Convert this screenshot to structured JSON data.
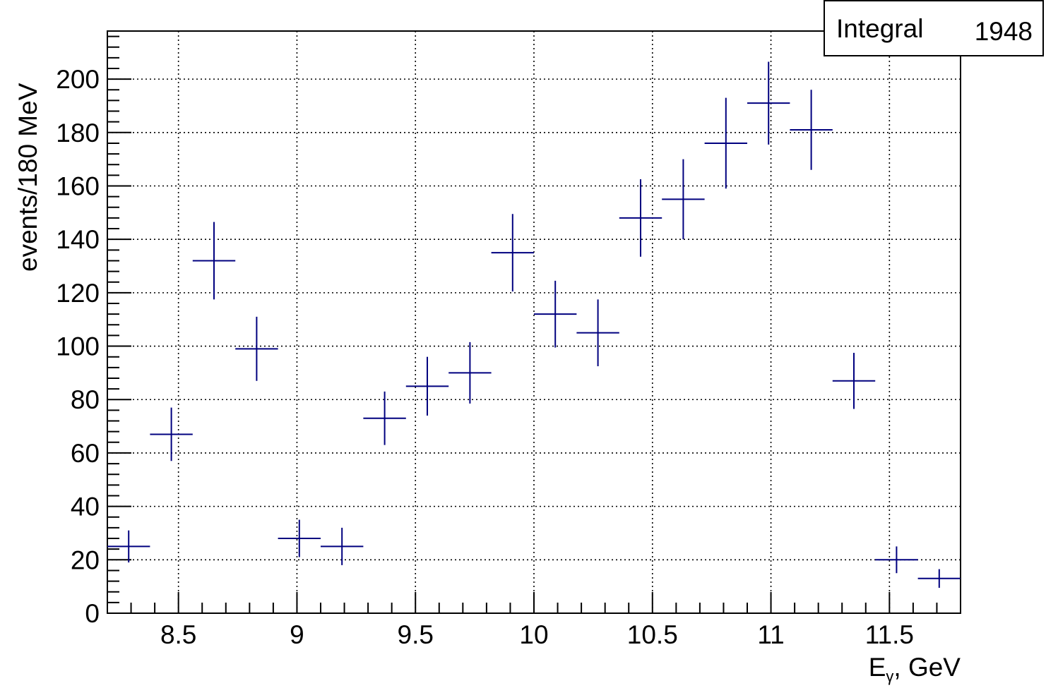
{
  "stats": {
    "label": "Integral",
    "value": "1948"
  },
  "chart_data": {
    "type": "scatter",
    "xlabel": "E",
    "xlabel_sub": "γ",
    "xlabel_tail": ", GeV",
    "ylabel": "events/180 MeV",
    "xlim": [
      8.2,
      11.8
    ],
    "ylim": [
      0,
      218
    ],
    "grid": true,
    "bin_width": 0.18,
    "x_ticks": [
      8.5,
      9,
      9.5,
      10,
      10.5,
      11,
      11.5
    ],
    "x_tick_labels": [
      "8.5",
      "9",
      "9.5",
      "10",
      "10.5",
      "11",
      "11.5"
    ],
    "y_ticks": [
      0,
      20,
      40,
      60,
      80,
      100,
      120,
      140,
      160,
      180,
      200
    ],
    "y_tick_labels": [
      "0",
      "20",
      "40",
      "60",
      "80",
      "100",
      "120",
      "140",
      "160",
      "180",
      "200"
    ],
    "color": "#00007f",
    "points": [
      {
        "x": 8.29,
        "y": 25,
        "err": 6
      },
      {
        "x": 8.47,
        "y": 67,
        "err": 10
      },
      {
        "x": 8.65,
        "y": 132,
        "err": 14.5
      },
      {
        "x": 8.83,
        "y": 99,
        "err": 12
      },
      {
        "x": 9.01,
        "y": 28,
        "err": 7
      },
      {
        "x": 9.19,
        "y": 25,
        "err": 7
      },
      {
        "x": 9.37,
        "y": 73,
        "err": 10
      },
      {
        "x": 9.55,
        "y": 85,
        "err": 11
      },
      {
        "x": 9.73,
        "y": 90,
        "err": 11.5
      },
      {
        "x": 9.91,
        "y": 135,
        "err": 14.5
      },
      {
        "x": 10.09,
        "y": 112,
        "err": 12.5
      },
      {
        "x": 10.27,
        "y": 105,
        "err": 12.5
      },
      {
        "x": 10.45,
        "y": 148,
        "err": 14.5
      },
      {
        "x": 10.63,
        "y": 155,
        "err": 15
      },
      {
        "x": 10.81,
        "y": 176,
        "err": 17
      },
      {
        "x": 10.99,
        "y": 191,
        "err": 15.5
      },
      {
        "x": 11.17,
        "y": 181,
        "err": 15
      },
      {
        "x": 11.35,
        "y": 87,
        "err": 10.5
      },
      {
        "x": 11.53,
        "y": 20,
        "err": 5
      },
      {
        "x": 11.71,
        "y": 13,
        "err": 3.5
      }
    ]
  }
}
